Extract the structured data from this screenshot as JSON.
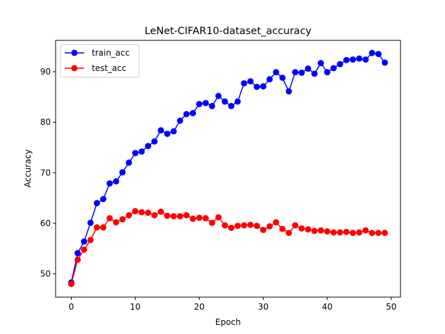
{
  "chart_data": {
    "type": "line",
    "title": "LeNet-CIFAR10-dataset_accuracy",
    "xlabel": "Epoch",
    "ylabel": "Accuracy",
    "xlim": [
      -2.45,
      51.45
    ],
    "ylim": [
      45.4,
      96.2
    ],
    "xticks": [
      0,
      10,
      20,
      30,
      40,
      50
    ],
    "yticks": [
      50,
      60,
      70,
      80,
      90
    ],
    "grid": false,
    "legend_position": "upper-left",
    "x": [
      0,
      1,
      2,
      3,
      4,
      5,
      6,
      7,
      8,
      9,
      10,
      11,
      12,
      13,
      14,
      15,
      16,
      17,
      18,
      19,
      20,
      21,
      22,
      23,
      24,
      25,
      26,
      27,
      28,
      29,
      30,
      31,
      32,
      33,
      34,
      35,
      36,
      37,
      38,
      39,
      40,
      41,
      42,
      43,
      44,
      45,
      46,
      47,
      48,
      49
    ],
    "series": [
      {
        "name": "train_acc",
        "color": "#0000ff",
        "values": [
          48.3,
          54.1,
          56.4,
          60.1,
          64.0,
          64.8,
          67.9,
          68.3,
          70.1,
          72.0,
          73.9,
          74.2,
          75.3,
          76.2,
          78.4,
          77.7,
          78.2,
          80.3,
          81.6,
          81.8,
          83.6,
          83.8,
          83.2,
          85.2,
          84.1,
          83.2,
          84.1,
          87.7,
          88.1,
          87.0,
          87.1,
          88.5,
          89.9,
          88.8,
          86.1,
          89.9,
          89.8,
          90.6,
          89.6,
          91.7,
          89.9,
          90.7,
          91.5,
          92.3,
          92.4,
          92.6,
          92.4,
          93.7,
          93.5,
          91.8
        ]
      },
      {
        "name": "test_acc",
        "color": "#ff0000",
        "values": [
          48.0,
          52.8,
          54.8,
          56.7,
          59.2,
          59.2,
          61.0,
          60.2,
          60.8,
          61.6,
          62.4,
          62.2,
          62.1,
          61.6,
          62.3,
          61.5,
          61.4,
          61.4,
          61.6,
          60.9,
          61.1,
          61.0,
          60.1,
          61.2,
          59.6,
          59.1,
          59.5,
          59.6,
          59.7,
          59.5,
          58.7,
          59.4,
          60.2,
          58.9,
          58.1,
          59.6,
          59.0,
          58.8,
          58.5,
          58.6,
          58.4,
          58.2,
          58.2,
          58.3,
          58.1,
          58.2,
          58.6,
          58.1,
          58.1,
          58.1
        ]
      }
    ]
  }
}
